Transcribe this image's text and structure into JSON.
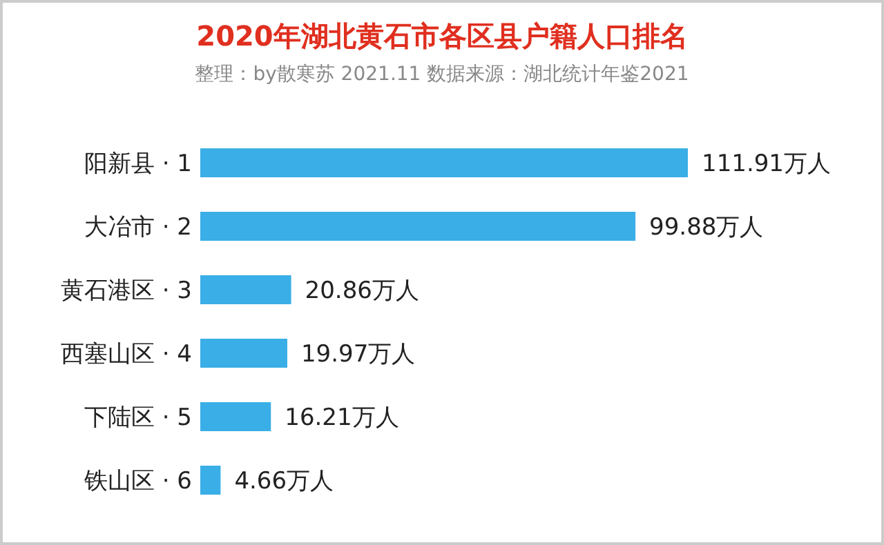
{
  "chart_data": {
    "type": "bar",
    "orientation": "horizontal",
    "title": "2020年湖北黄石市各区县户籍人口排名",
    "subtitle": "整理：by散寒苏  2021.11  数据来源：湖北统计年鉴2021",
    "categories": [
      "阳新县 · 1",
      "大冶市 · 2",
      "黄石港区 · 3",
      "西塞山区 · 4",
      "下陆区 · 5",
      "铁山区 · 6"
    ],
    "values": [
      111.91,
      99.88,
      20.86,
      19.97,
      16.21,
      4.66
    ],
    "value_labels": [
      "111.91万人",
      "99.88万人",
      "20.86万人",
      "19.97万人",
      "16.21万人",
      "4.66万人"
    ],
    "color": "#3aaee6"
  }
}
